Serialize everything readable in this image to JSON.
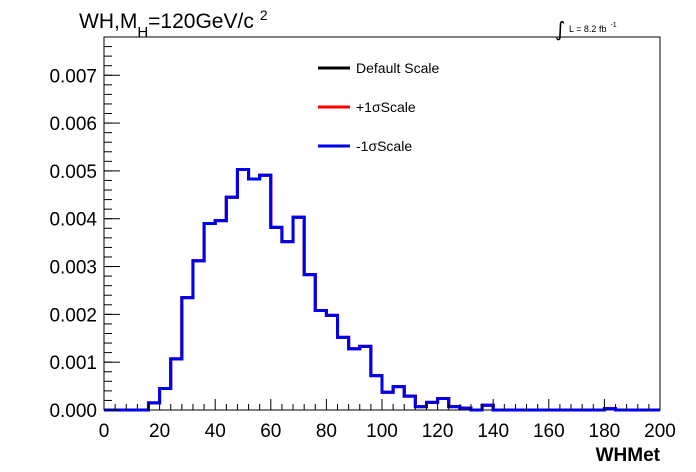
{
  "chart_data": {
    "type": "histogram",
    "title_parts": {
      "main": "WH,M",
      "sub": "H",
      "rest": "=120GeV/c",
      "sup": "2"
    },
    "lumi_parts": {
      "integral": "∫",
      "text": "L = 8.2 fb",
      "sup": "-1"
    },
    "xlabel": "WHMet",
    "ylabel": "",
    "xlim": [
      0,
      200
    ],
    "ylim": [
      0,
      0.0078
    ],
    "x_ticks": [
      "0",
      "20",
      "40",
      "60",
      "80",
      "100",
      "120",
      "140",
      "160",
      "180",
      "200"
    ],
    "y_ticks": [
      "0.000",
      "0.001",
      "0.002",
      "0.003",
      "0.004",
      "0.005",
      "0.006",
      "0.007"
    ],
    "bin_width": 4,
    "bin_edges_start": 0,
    "values": [
      0,
      0,
      0,
      0,
      0.00015,
      0.00045,
      0.00107,
      0.00235,
      0.00312,
      0.0039,
      0.00396,
      0.00445,
      0.00503,
      0.00483,
      0.00491,
      0.00382,
      0.00352,
      0.00403,
      0.00283,
      0.00208,
      0.00198,
      0.00152,
      0.00128,
      0.00133,
      0.00072,
      0.00037,
      0.00049,
      0.00029,
      7e-05,
      0.00016,
      0.00024,
      7e-05,
      4e-05,
      0,
      0.0001,
      0,
      0,
      0,
      0,
      0,
      0,
      0,
      0,
      0,
      0,
      3e-05,
      0,
      0,
      0,
      0
    ],
    "series": [
      {
        "name": "Default Scale",
        "color": "#000000"
      },
      {
        "name": "+1σScale",
        "color": "#ff0000"
      },
      {
        "name": "-1σScale",
        "color": "#0000ee"
      }
    ],
    "legend_placement": "top-center",
    "grid": false
  }
}
